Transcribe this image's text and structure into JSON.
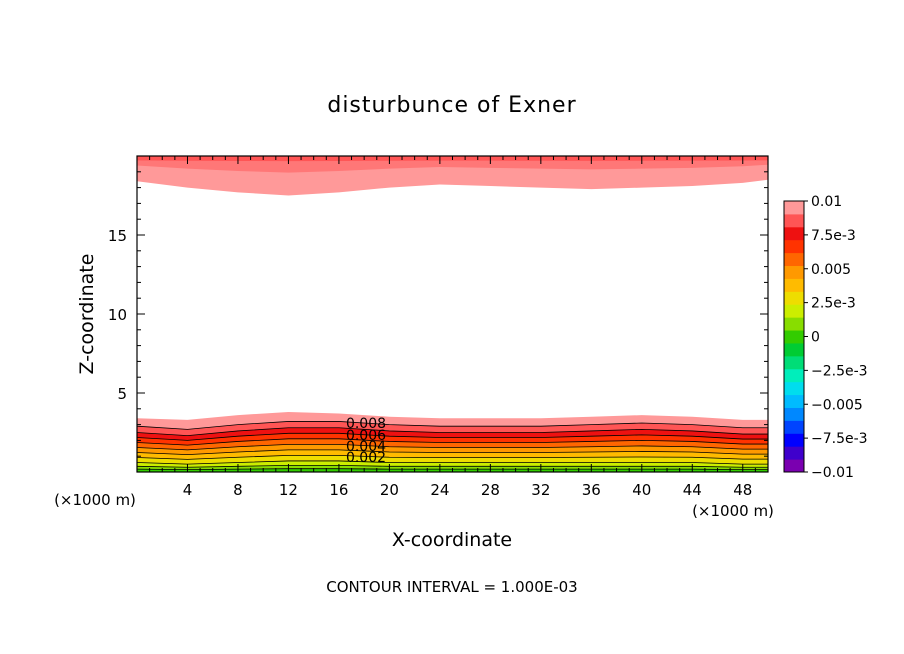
{
  "chart_data": {
    "type": "contour",
    "title": "disturbunce of Exner",
    "xlabel": "X-coordinate",
    "ylabel": "Z-coordinate",
    "x_unit_label_left": "(×1000 m)",
    "x_unit_label_right": "(×1000 m)",
    "xlim": [
      0,
      50
    ],
    "ylim": [
      0,
      20
    ],
    "x_ticks": [
      4,
      8,
      12,
      16,
      20,
      24,
      28,
      32,
      36,
      40,
      44,
      48
    ],
    "y_ticks": [
      5,
      10,
      15
    ],
    "contour_interval_text": "CONTOUR INTERVAL = 1.000E-03",
    "contour_labels": [
      "0.008",
      "0.006",
      "0.004",
      "0.002"
    ],
    "colorbar": {
      "tick_labels": [
        "0.01",
        "7.5e-3",
        "0.005",
        "2.5e-3",
        "0",
        "−2.5e-3",
        "−0.005",
        "−7.5e-3",
        "−0.01"
      ],
      "range": [
        -0.01,
        0.01
      ],
      "colors": [
        "#7a00b0",
        "#3f00cc",
        "#0000ff",
        "#0044ff",
        "#0088ff",
        "#00bbff",
        "#00ddee",
        "#00eebb",
        "#00dd77",
        "#00cc33",
        "#33cc00",
        "#88dd00",
        "#ccee00",
        "#eedd00",
        "#ffbb00",
        "#ff9900",
        "#ff6600",
        "#ff3300",
        "#ee1111",
        "#ff5555",
        "#ff9999"
      ]
    },
    "series": [
      {
        "region": "bottom layer",
        "z_top_contours": [
          {
            "level": 0.01,
            "x": [
              0,
              4,
              8,
              12,
              16,
              20,
              24,
              28,
              32,
              36,
              40,
              44,
              48,
              50
            ],
            "z": [
              3.4,
              3.3,
              3.6,
              3.8,
              3.7,
              3.5,
              3.4,
              3.4,
              3.4,
              3.5,
              3.6,
              3.5,
              3.3,
              3.3
            ]
          },
          {
            "level": 0.009,
            "x": [
              0,
              4,
              8,
              12,
              16,
              20,
              24,
              28,
              32,
              36,
              40,
              44,
              48,
              50
            ],
            "z": [
              2.9,
              2.7,
              3.0,
              3.2,
              3.2,
              3.0,
              2.9,
              2.9,
              2.9,
              3.0,
              3.1,
              3.0,
              2.8,
              2.8
            ]
          },
          {
            "level": 0.008,
            "x": [
              0,
              4,
              8,
              12,
              16,
              20,
              24,
              28,
              32,
              36,
              40,
              44,
              48,
              50
            ],
            "z": [
              2.5,
              2.3,
              2.6,
              2.8,
              2.8,
              2.6,
              2.5,
              2.5,
              2.5,
              2.6,
              2.7,
              2.6,
              2.4,
              2.4
            ]
          },
          {
            "level": 0.002,
            "x": [
              0,
              4,
              8,
              12,
              16,
              20,
              24,
              28,
              32,
              36,
              40,
              44,
              48,
              50
            ],
            "z": [
              0.6,
              0.5,
              0.6,
              0.7,
              0.7,
              0.6,
              0.6,
              0.6,
              0.6,
              0.6,
              0.6,
              0.6,
              0.5,
              0.5
            ]
          }
        ]
      },
      {
        "region": "top layer",
        "z_bottom_contour": {
          "x": [
            0,
            4,
            8,
            12,
            16,
            20,
            24,
            28,
            32,
            36,
            40,
            44,
            48,
            50
          ],
          "z": [
            18.4,
            18.0,
            17.7,
            17.5,
            17.7,
            18.0,
            18.2,
            18.1,
            18.0,
            17.9,
            18.0,
            18.1,
            18.3,
            18.5
          ]
        }
      }
    ]
  }
}
